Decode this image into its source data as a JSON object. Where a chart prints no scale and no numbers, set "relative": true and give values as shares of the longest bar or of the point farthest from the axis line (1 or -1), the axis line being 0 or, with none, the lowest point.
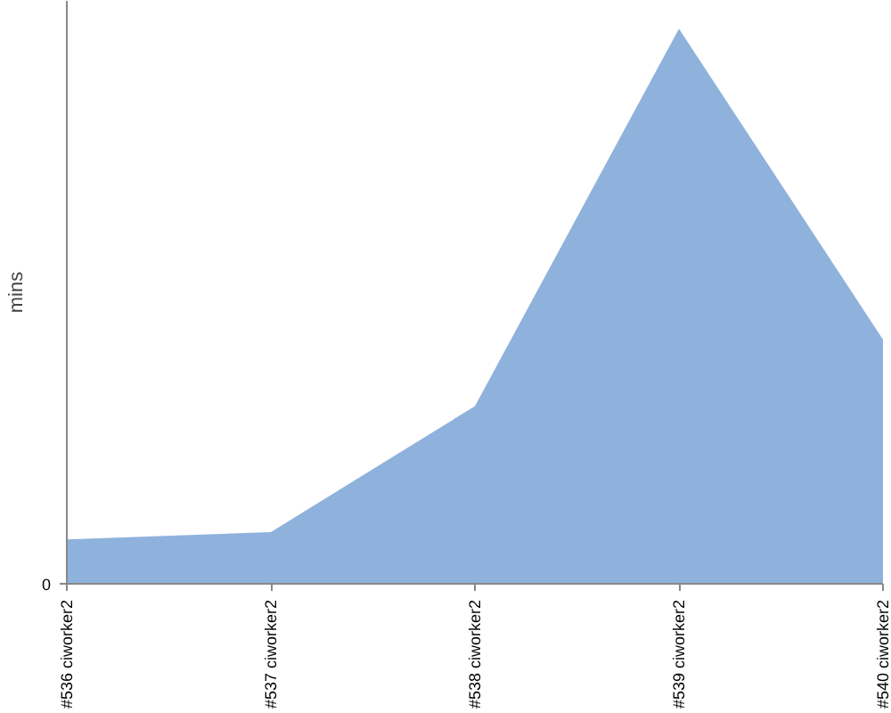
{
  "chart_data": {
    "type": "area",
    "ylabel": "mins",
    "relative": true,
    "color": "#8fb2dc",
    "grid": false,
    "categories": [
      "#536 ciworker2",
      "#537 ciworker2",
      "#538 ciworker2",
      "#539 ciworker2",
      "#540 ciworker2"
    ],
    "values": [
      0.08,
      0.093,
      0.32,
      1.0,
      0.44
    ],
    "annotations": [
      "0"
    ]
  }
}
